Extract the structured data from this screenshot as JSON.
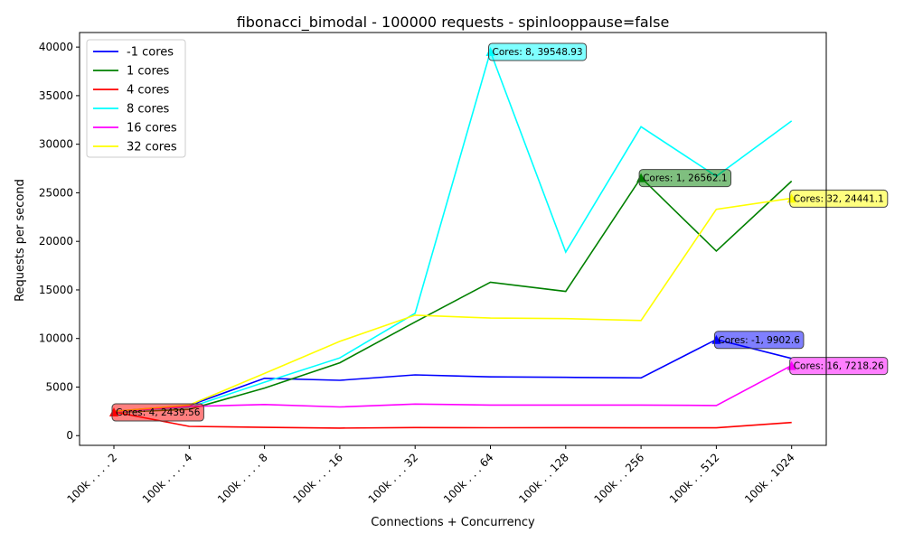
{
  "chart_data": {
    "type": "line",
    "title": "fibonacci_bimodal - 100000 requests - spinlooppause=false",
    "xlabel": "Connections + Concurrency",
    "ylabel": "Requests per second",
    "categories": [
      "100k . . . . 2",
      "100k . . . . 4",
      "100k . . . . 8",
      "100k . . . 16",
      "100k . . . 32",
      "100k . . . 64",
      "100k . . 128",
      "100k . . 256",
      "100k . . 512",
      "100k . 1024"
    ],
    "ylim": [
      -1000,
      41500
    ],
    "yticks": [
      0,
      5000,
      10000,
      15000,
      20000,
      25000,
      30000,
      35000,
      40000
    ],
    "ytick_labels": [
      "0",
      "5000",
      "10000",
      "15000",
      "20000",
      "25000",
      "30000",
      "35000",
      "40000"
    ],
    "grid": false,
    "legend_position": "top-left",
    "series": [
      {
        "name": "-1 cores",
        "color": "#0000ff",
        "values": [
          2500,
          3100,
          5900,
          5700,
          6250,
          6050,
          6000,
          5950,
          9902.6,
          7950
        ]
      },
      {
        "name": "1 cores",
        "color": "#008000",
        "values": [
          2400,
          2700,
          4900,
          7500,
          11700,
          15800,
          14850,
          26562.1,
          19000,
          26200
        ]
      },
      {
        "name": "4 cores",
        "color": "#ff0000",
        "values": [
          2439.56,
          950,
          850,
          780,
          830,
          810,
          820,
          800,
          800,
          1350
        ]
      },
      {
        "name": "8 cores",
        "color": "#00ffff",
        "values": [
          2450,
          2900,
          5500,
          8000,
          12600,
          39548.93,
          18900,
          31800,
          26700,
          32400
        ]
      },
      {
        "name": "16 cores",
        "color": "#ff00ff",
        "values": [
          2450,
          3000,
          3200,
          2950,
          3250,
          3150,
          3150,
          3150,
          3100,
          7218.26
        ]
      },
      {
        "name": "32 cores",
        "color": "#ffff00",
        "values": [
          2500,
          3150,
          6400,
          9700,
          12400,
          12100,
          12050,
          11850,
          23300,
          24441.1
        ]
      }
    ],
    "annotations": [
      {
        "text": "Cores: -1, 9902.6",
        "series": 0,
        "index": 8,
        "color": "#0000ff"
      },
      {
        "text": "Cores: 1, 26562.1",
        "series": 1,
        "index": 7,
        "color": "#008000"
      },
      {
        "text": "Cores: 4, 2439.56",
        "series": 2,
        "index": 0,
        "color": "#ff0000"
      },
      {
        "text": "Cores: 8, 39548.93",
        "series": 3,
        "index": 5,
        "color": "#00ffff"
      },
      {
        "text": "Cores: 16, 7218.26",
        "series": 4,
        "index": 9,
        "color": "#ff00ff"
      },
      {
        "text": "Cores: 32, 24441.1",
        "series": 5,
        "index": 9,
        "color": "#ffff00"
      }
    ]
  }
}
